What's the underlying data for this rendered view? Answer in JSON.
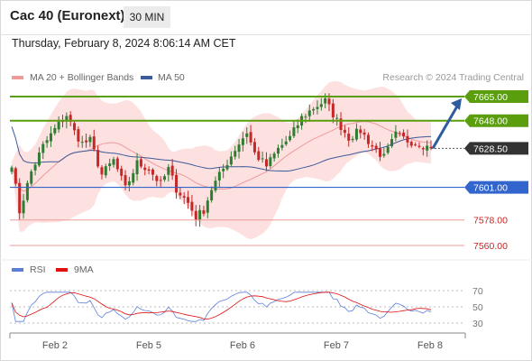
{
  "header": {
    "title": "Cac 40 (Euronext)",
    "timeframe": "30 MIN"
  },
  "datetime": "Thursday, February 8, 2024 8:06:14 AM CET",
  "legend": {
    "ma20": "MA 20 + Bollinger Bands",
    "ma50": "MA 50",
    "credit": "Research © 2024 Trading Central",
    "rsi": "RSI",
    "ma9": "9MA"
  },
  "colors": {
    "resistance": "#5a9e0e",
    "support": "#3366cc",
    "weak": "#ef9a9a",
    "current": "#333333",
    "ma20": "#ef9a9a",
    "ma50": "#3b5b9a",
    "band": "#fde0e0",
    "up": "#2e7d32",
    "down": "#c62828",
    "arrow": "#2e5d9e",
    "rsi": "#5b7fd9",
    "ma9": "#dd1111"
  },
  "chart_data": [
    {
      "type": "candlestick",
      "x_ticks": [
        "Feb 2",
        "Feb 5",
        "Feb 6",
        "Feb 7",
        "Feb 8"
      ],
      "levels": [
        {
          "value": 7665.0,
          "label": "7665.00",
          "style": "resistance"
        },
        {
          "value": 7648.0,
          "label": "7648.00",
          "style": "resistance"
        },
        {
          "value": 7628.5,
          "label": "7628.50",
          "style": "current"
        },
        {
          "value": 7601.0,
          "label": "7601.00",
          "style": "support"
        },
        {
          "value": 7578.0,
          "label": "7578.00",
          "style": "weak"
        },
        {
          "value": 7560.0,
          "label": "7560.00",
          "style": "weak"
        }
      ],
      "series": [
        {
          "name": "MA 20 + Bollinger Bands"
        },
        {
          "name": "MA 50"
        }
      ],
      "close_anchors": [
        [
          0,
          7618
        ],
        [
          2,
          7584
        ],
        [
          5,
          7612
        ],
        [
          8,
          7630
        ],
        [
          11,
          7642
        ],
        [
          14,
          7652
        ],
        [
          16,
          7640
        ],
        [
          18,
          7632
        ],
        [
          20,
          7634
        ],
        [
          23,
          7610
        ],
        [
          26,
          7620
        ],
        [
          29,
          7600
        ],
        [
          32,
          7618
        ],
        [
          35,
          7614
        ],
        [
          38,
          7603
        ],
        [
          40,
          7614
        ],
        [
          42,
          7600
        ],
        [
          45,
          7590
        ],
        [
          47,
          7580
        ],
        [
          49,
          7585
        ],
        [
          51,
          7600
        ],
        [
          54,
          7614
        ],
        [
          57,
          7628
        ],
        [
          60,
          7640
        ],
        [
          62,
          7625
        ],
        [
          65,
          7616
        ],
        [
          68,
          7628
        ],
        [
          71,
          7636
        ],
        [
          74,
          7650
        ],
        [
          77,
          7657
        ],
        [
          80,
          7662
        ],
        [
          83,
          7648
        ],
        [
          86,
          7636
        ],
        [
          89,
          7641
        ],
        [
          92,
          7630
        ],
        [
          95,
          7622
        ],
        [
          98,
          7638
        ],
        [
          101,
          7634
        ],
        [
          104,
          7632
        ],
        [
          107,
          7628.5
        ]
      ],
      "forecast": {
        "from": 7628.5,
        "to": 7665.0
      },
      "y_range": [
        7552,
        7680
      ]
    },
    {
      "type": "line",
      "name": "RSI",
      "y_ticks": [
        70,
        50,
        30
      ],
      "series": [
        {
          "name": "RSI"
        },
        {
          "name": "9MA"
        }
      ],
      "y_range": [
        25,
        80
      ]
    }
  ]
}
